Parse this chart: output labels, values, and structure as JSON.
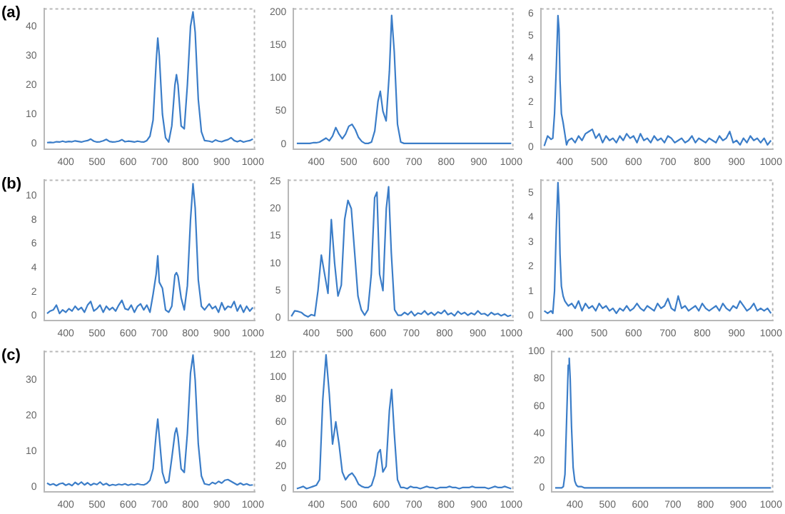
{
  "chart_data": [
    {
      "type": "line",
      "title": "(a)",
      "xlim": [
        330,
        1005
      ],
      "xticks": [
        400,
        500,
        600,
        700,
        800,
        900,
        1000
      ],
      "ylim": [
        -2,
        46
      ],
      "yticks": [
        0,
        10,
        20,
        30,
        40
      ],
      "series": [
        {
          "color": "#3b7dc8",
          "x": [
            340,
            350,
            360,
            370,
            380,
            390,
            400,
            410,
            420,
            430,
            440,
            450,
            460,
            470,
            480,
            490,
            500,
            510,
            520,
            530,
            540,
            550,
            560,
            570,
            580,
            590,
            600,
            610,
            620,
            630,
            640,
            650,
            660,
            670,
            680,
            690,
            695,
            700,
            710,
            720,
            730,
            740,
            750,
            755,
            760,
            770,
            780,
            790,
            800,
            808,
            815,
            825,
            835,
            845,
            860,
            870,
            880,
            890,
            900,
            910,
            920,
            930,
            940,
            950,
            960,
            970,
            980,
            990,
            1000
          ],
          "values": [
            0.3,
            0.4,
            0.3,
            0.6,
            0.5,
            0.8,
            0.5,
            0.7,
            0.6,
            0.9,
            0.7,
            0.5,
            0.8,
            1.0,
            1.5,
            0.8,
            0.5,
            0.6,
            0.9,
            1.4,
            0.7,
            0.5,
            0.6,
            0.8,
            1.3,
            0.6,
            0.8,
            0.7,
            0.5,
            0.8,
            0.6,
            0.5,
            1.0,
            2.5,
            8,
            28,
            36,
            30,
            10,
            2,
            0.5,
            6,
            20,
            23.5,
            20,
            6,
            5,
            20,
            40,
            45,
            38,
            15,
            4,
            1,
            0.8,
            0.5,
            1.2,
            0.8,
            0.6,
            1.0,
            1.3,
            2.0,
            1.0,
            0.6,
            1.0,
            0.5,
            0.8,
            1.0,
            1.5
          ]
        }
      ]
    },
    {
      "type": "line",
      "xlim": [
        330,
        1005
      ],
      "xticks": [
        400,
        500,
        600,
        700,
        800,
        900,
        1000
      ],
      "ylim": [
        -8,
        205
      ],
      "yticks": [
        0,
        50,
        100,
        150,
        200
      ],
      "series": [
        {
          "color": "#3b7dc8",
          "x": [
            340,
            350,
            360,
            370,
            380,
            390,
            400,
            410,
            420,
            430,
            440,
            450,
            460,
            470,
            480,
            490,
            500,
            510,
            520,
            530,
            540,
            550,
            560,
            570,
            580,
            590,
            597,
            605,
            615,
            625,
            632,
            640,
            650,
            660,
            670,
            680,
            690,
            700,
            710,
            720,
            730,
            740,
            750,
            760,
            770,
            780,
            790,
            800,
            810,
            820,
            830,
            840,
            850,
            860,
            870,
            880,
            890,
            900,
            910,
            920,
            930,
            940,
            950,
            960,
            970,
            980,
            990,
            1000
          ],
          "values": [
            1,
            1,
            1,
            1,
            1,
            2,
            2,
            3,
            6,
            9,
            5,
            12,
            25,
            15,
            8,
            15,
            27,
            30,
            22,
            10,
            4,
            1,
            1,
            3,
            20,
            65,
            80,
            50,
            35,
            110,
            195,
            140,
            30,
            3,
            1,
            1,
            1,
            1,
            1,
            1,
            1,
            1,
            1,
            1,
            1,
            1,
            1,
            1,
            1,
            1,
            1,
            1,
            1,
            1,
            1,
            1,
            1,
            1,
            1,
            1,
            1,
            1,
            1,
            1,
            1,
            1,
            1,
            1
          ]
        }
      ]
    },
    {
      "type": "line",
      "xlim": [
        330,
        1005
      ],
      "xticks": [
        400,
        500,
        600,
        700,
        800,
        900,
        1000
      ],
      "ylim": [
        -0.1,
        6.2
      ],
      "yticks": [
        0,
        1,
        2,
        3,
        4,
        5,
        6
      ],
      "series": [
        {
          "color": "#3b7dc8",
          "x": [
            340,
            350,
            360,
            365,
            370,
            375,
            380,
            383,
            386,
            390,
            395,
            400,
            405,
            410,
            420,
            430,
            440,
            450,
            460,
            470,
            480,
            490,
            500,
            510,
            520,
            530,
            540,
            550,
            560,
            570,
            580,
            590,
            600,
            610,
            620,
            630,
            640,
            650,
            660,
            670,
            680,
            690,
            700,
            710,
            720,
            730,
            740,
            750,
            760,
            770,
            780,
            790,
            800,
            810,
            820,
            830,
            840,
            850,
            860,
            870,
            880,
            890,
            900,
            910,
            920,
            930,
            940,
            950,
            960,
            970,
            980,
            990,
            1000
          ],
          "values": [
            0.05,
            0.5,
            0.35,
            0.4,
            1.5,
            3.5,
            5.9,
            5.3,
            3,
            1.5,
            1.1,
            0.6,
            0.1,
            0.3,
            0.4,
            0.2,
            0.5,
            0.3,
            0.6,
            0.7,
            0.8,
            0.4,
            0.6,
            0.2,
            0.5,
            0.3,
            0.4,
            0.2,
            0.5,
            0.3,
            0.6,
            0.4,
            0.5,
            0.2,
            0.6,
            0.3,
            0.4,
            0.2,
            0.5,
            0.3,
            0.4,
            0.2,
            0.5,
            0.4,
            0.2,
            0.3,
            0.4,
            0.2,
            0.3,
            0.5,
            0.2,
            0.4,
            0.3,
            0.2,
            0.4,
            0.3,
            0.2,
            0.5,
            0.3,
            0.4,
            0.7,
            0.2,
            0.3,
            0.1,
            0.4,
            0.2,
            0.5,
            0.3,
            0.4,
            0.2,
            0.4,
            0.1,
            0.3
          ]
        }
      ]
    },
    {
      "type": "line",
      "title": "(b)",
      "xlim": [
        330,
        1005
      ],
      "xticks": [
        400,
        500,
        600,
        700,
        800,
        900,
        1000
      ],
      "ylim": [
        -0.4,
        11.3
      ],
      "yticks": [
        0,
        2,
        4,
        6,
        8,
        10
      ],
      "series": [
        {
          "color": "#3b7dc8",
          "x": [
            340,
            350,
            360,
            370,
            380,
            390,
            400,
            410,
            420,
            430,
            440,
            450,
            460,
            470,
            480,
            490,
            500,
            510,
            520,
            530,
            540,
            550,
            560,
            570,
            580,
            590,
            600,
            610,
            620,
            630,
            640,
            650,
            660,
            670,
            680,
            690,
            695,
            700,
            710,
            720,
            730,
            740,
            750,
            755,
            760,
            770,
            780,
            790,
            800,
            808,
            815,
            825,
            835,
            845,
            860,
            870,
            880,
            890,
            900,
            910,
            920,
            930,
            940,
            950,
            960,
            970,
            980,
            990,
            1000
          ],
          "values": [
            0.2,
            0.4,
            0.5,
            0.9,
            0.2,
            0.5,
            0.3,
            0.6,
            0.4,
            0.8,
            0.5,
            0.7,
            0.3,
            0.9,
            1.2,
            0.4,
            0.6,
            0.9,
            0.3,
            0.8,
            0.5,
            0.7,
            0.4,
            0.9,
            1.3,
            0.6,
            0.5,
            0.9,
            0.3,
            0.8,
            1.0,
            0.5,
            0.9,
            0.3,
            1.8,
            3.5,
            5.0,
            2.8,
            2.3,
            0.5,
            0.3,
            0.8,
            3.4,
            3.6,
            3.3,
            1.5,
            0.5,
            2.5,
            8,
            11,
            9,
            3,
            0.8,
            0.5,
            1.0,
            0.6,
            0.8,
            0.3,
            1.1,
            0.5,
            0.8,
            0.7,
            1.2,
            0.4,
            0.9,
            0.3,
            0.8,
            0.4,
            0.7
          ]
        }
      ]
    },
    {
      "type": "line",
      "xlim": [
        330,
        1005
      ],
      "xticks": [
        400,
        500,
        600,
        700,
        800,
        900,
        1000
      ],
      "ylim": [
        -0.5,
        25.2
      ],
      "yticks": [
        0,
        5,
        10,
        15,
        20,
        25
      ],
      "series": [
        {
          "color": "#3b7dc8",
          "x": [
            340,
            350,
            360,
            370,
            380,
            390,
            400,
            410,
            420,
            430,
            440,
            450,
            460,
            470,
            480,
            490,
            500,
            510,
            520,
            530,
            540,
            550,
            560,
            570,
            580,
            590,
            597,
            605,
            615,
            625,
            632,
            640,
            650,
            660,
            670,
            680,
            690,
            700,
            710,
            720,
            730,
            740,
            750,
            760,
            770,
            780,
            790,
            800,
            810,
            820,
            830,
            840,
            850,
            860,
            870,
            880,
            890,
            900,
            910,
            920,
            930,
            940,
            950,
            960,
            970,
            980,
            990,
            1000
          ],
          "values": [
            0.3,
            1.3,
            1.2,
            1.0,
            0.5,
            0.2,
            0.6,
            0.4,
            5,
            11.5,
            8,
            4.5,
            18,
            10,
            4,
            6,
            18,
            21.5,
            20,
            12,
            4,
            1.5,
            0.5,
            1.5,
            8,
            22,
            23,
            8,
            5,
            20,
            24,
            12,
            1.5,
            0.5,
            0.5,
            1.0,
            0.6,
            1.2,
            0.4,
            0.9,
            0.7,
            1.3,
            0.6,
            1.0,
            0.5,
            1.1,
            0.8,
            1.4,
            0.6,
            0.9,
            0.4,
            1.2,
            0.7,
            1.0,
            0.5,
            0.9,
            0.6,
            1.3,
            0.7,
            0.8,
            0.4,
            1.0,
            0.6,
            0.8,
            0.4,
            0.7,
            0.3,
            0.5
          ]
        }
      ]
    },
    {
      "type": "line",
      "xlim": [
        330,
        1005
      ],
      "xticks": [
        400,
        500,
        600,
        700,
        800,
        900,
        1000
      ],
      "ylim": [
        -0.2,
        5.5
      ],
      "yticks": [
        0,
        1,
        2,
        3,
        4,
        5
      ],
      "series": [
        {
          "color": "#3b7dc8",
          "x": [
            340,
            350,
            360,
            365,
            370,
            375,
            380,
            383,
            386,
            390,
            395,
            400,
            405,
            410,
            420,
            430,
            440,
            450,
            460,
            470,
            480,
            490,
            500,
            510,
            520,
            530,
            540,
            550,
            560,
            570,
            580,
            590,
            600,
            610,
            620,
            630,
            640,
            650,
            660,
            670,
            680,
            690,
            700,
            710,
            720,
            730,
            740,
            750,
            760,
            770,
            780,
            790,
            800,
            810,
            820,
            830,
            840,
            850,
            860,
            870,
            880,
            890,
            900,
            910,
            920,
            930,
            940,
            950,
            960,
            970,
            980,
            990,
            1000
          ],
          "values": [
            0.2,
            0.1,
            0.2,
            0.1,
            1,
            3.5,
            5.4,
            4.5,
            2.5,
            1.2,
            0.8,
            0.6,
            0.5,
            0.4,
            0.5,
            0.3,
            0.6,
            0.2,
            0.5,
            0.3,
            0.4,
            0.2,
            0.5,
            0.3,
            0.4,
            0.2,
            0.3,
            0.1,
            0.3,
            0.2,
            0.4,
            0.2,
            0.3,
            0.5,
            0.3,
            0.2,
            0.4,
            0.3,
            0.2,
            0.5,
            0.3,
            0.4,
            0.7,
            0.3,
            0.2,
            0.8,
            0.3,
            0.4,
            0.2,
            0.3,
            0.4,
            0.2,
            0.5,
            0.3,
            0.2,
            0.3,
            0.4,
            0.2,
            0.5,
            0.3,
            0.2,
            0.4,
            0.3,
            0.6,
            0.4,
            0.2,
            0.3,
            0.5,
            0.2,
            0.3,
            0.2,
            0.3,
            0.1
          ]
        }
      ]
    },
    {
      "type": "line",
      "title": "(c)",
      "xlim": [
        330,
        1005
      ],
      "xticks": [
        400,
        500,
        600,
        700,
        800,
        900,
        1000
      ],
      "ylim": [
        -1.5,
        38
      ],
      "yticks": [
        0,
        10,
        20,
        30
      ],
      "series": [
        {
          "color": "#3b7dc8",
          "x": [
            340,
            350,
            360,
            370,
            380,
            390,
            400,
            410,
            420,
            430,
            440,
            450,
            460,
            470,
            480,
            490,
            500,
            510,
            520,
            530,
            540,
            550,
            560,
            570,
            580,
            590,
            600,
            610,
            620,
            630,
            640,
            650,
            660,
            670,
            680,
            690,
            695,
            700,
            710,
            720,
            730,
            740,
            750,
            755,
            760,
            770,
            780,
            790,
            800,
            808,
            815,
            825,
            835,
            845,
            860,
            870,
            880,
            890,
            900,
            910,
            920,
            930,
            940,
            950,
            960,
            970,
            980,
            990,
            1000
          ],
          "values": [
            1.0,
            0.5,
            0.8,
            0.3,
            0.8,
            1.0,
            0.4,
            0.8,
            0.3,
            1.2,
            0.6,
            1.3,
            0.5,
            1.1,
            0.4,
            0.9,
            0.6,
            1.3,
            0.5,
            0.9,
            0.3,
            0.6,
            0.4,
            0.7,
            0.5,
            0.8,
            0.4,
            0.7,
            0.5,
            0.8,
            0.6,
            0.5,
            0.9,
            1.8,
            5,
            15,
            19,
            14,
            4,
            1,
            1.5,
            8,
            15,
            16.5,
            14,
            5,
            4,
            15,
            32,
            37,
            30,
            12,
            3,
            0.8,
            0.5,
            1.2,
            0.8,
            1.5,
            1.0,
            1.8,
            2.0,
            1.5,
            1.0,
            0.5,
            1.0,
            0.5,
            0.8,
            0.4,
            0.5
          ]
        }
      ]
    },
    {
      "type": "line",
      "xlim": [
        330,
        1005
      ],
      "xticks": [
        400,
        500,
        600,
        700,
        800,
        900,
        1000
      ],
      "ylim": [
        -3,
        123
      ],
      "yticks": [
        0,
        20,
        40,
        60,
        80,
        100,
        120
      ],
      "series": [
        {
          "color": "#3b7dc8",
          "x": [
            340,
            350,
            360,
            370,
            380,
            390,
            400,
            410,
            420,
            430,
            440,
            450,
            460,
            470,
            480,
            490,
            500,
            510,
            520,
            530,
            540,
            550,
            560,
            570,
            580,
            590,
            597,
            605,
            615,
            625,
            632,
            640,
            650,
            660,
            670,
            680,
            690,
            700,
            710,
            720,
            730,
            740,
            750,
            760,
            770,
            780,
            790,
            800,
            810,
            820,
            830,
            840,
            850,
            860,
            870,
            880,
            890,
            900,
            910,
            920,
            930,
            940,
            950,
            960,
            970,
            980,
            990,
            1000
          ],
          "values": [
            0,
            1,
            2,
            0,
            1,
            2,
            3,
            8,
            80,
            120,
            85,
            40,
            60,
            40,
            15,
            8,
            12,
            14,
            10,
            4,
            2,
            1,
            1,
            3,
            12,
            32,
            35,
            15,
            20,
            70,
            89,
            50,
            8,
            1,
            1,
            0,
            2,
            1,
            1,
            0,
            1,
            2,
            1,
            1,
            0,
            1,
            1,
            1,
            2,
            1,
            1,
            0,
            1,
            1,
            1,
            2,
            1,
            1,
            1,
            1,
            0,
            1,
            2,
            1,
            1,
            2,
            1,
            0
          ]
        }
      ]
    },
    {
      "type": "line",
      "xlim": [
        330,
        1005
      ],
      "xticks": [
        400,
        500,
        600,
        700,
        800,
        900,
        1000
      ],
      "ylim": [
        -3,
        100
      ],
      "yticks": [
        0,
        20,
        40,
        60,
        80,
        100
      ],
      "series": [
        {
          "color": "#3b7dc8",
          "x": [
            340,
            350,
            360,
            365,
            370,
            375,
            380,
            383,
            386,
            390,
            395,
            400,
            405,
            410,
            420,
            430,
            440,
            450,
            460,
            470,
            480,
            490,
            500,
            510,
            520,
            530,
            540,
            550,
            560,
            570,
            580,
            590,
            600,
            610,
            620,
            630,
            640,
            650,
            660,
            670,
            680,
            690,
            700,
            710,
            720,
            730,
            740,
            750,
            760,
            770,
            780,
            790,
            800,
            810,
            820,
            830,
            840,
            850,
            860,
            870,
            880,
            890,
            900,
            910,
            920,
            930,
            940,
            950,
            960,
            970,
            980,
            990,
            1000
          ],
          "values": [
            0,
            0,
            0,
            1,
            10,
            50,
            90,
            95,
            80,
            45,
            15,
            5,
            2,
            1,
            1,
            0,
            0,
            0,
            0,
            0,
            0,
            0,
            0,
            0,
            0,
            0,
            0,
            0,
            0,
            0,
            0,
            0,
            0,
            0,
            0,
            0,
            0,
            0,
            0,
            0,
            0,
            0,
            0,
            0,
            0,
            0,
            0,
            0,
            0,
            0,
            0,
            0,
            0,
            0,
            0,
            0,
            0,
            0,
            0,
            0,
            0,
            0,
            0,
            0,
            0,
            0,
            0,
            0,
            0,
            0,
            0,
            0,
            0
          ]
        }
      ]
    }
  ]
}
